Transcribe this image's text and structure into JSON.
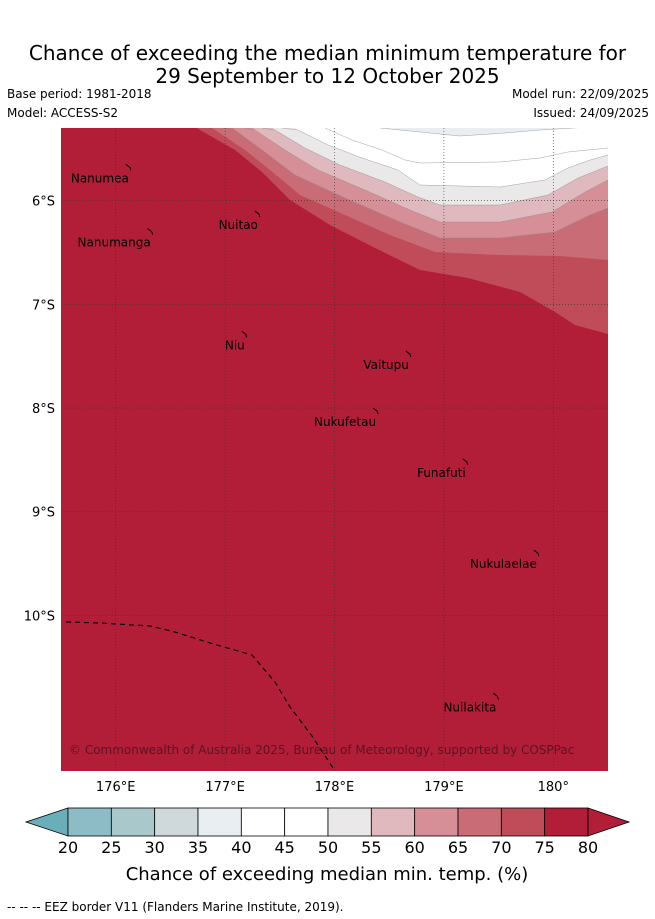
{
  "header": {
    "title_line1": "Chance of exceeding the median minimum temperature for",
    "title_line2": "29 September to 12 October 2025",
    "base_period": "Base period: 1981-2018",
    "model": "Model: ACCESS-S2",
    "model_run": "Model run: 22/09/2025",
    "issued": "Issued: 24/09/2025"
  },
  "map": {
    "lon_range": [
      175.5,
      180.5
    ],
    "lat_range": [
      -11.5,
      -5.3
    ],
    "lon_ticks": [
      {
        "value": 176,
        "label": "176°E"
      },
      {
        "value": 177,
        "label": "177°E"
      },
      {
        "value": 178,
        "label": "178°E"
      },
      {
        "value": 179,
        "label": "179°E"
      },
      {
        "value": 180,
        "label": "180°"
      }
    ],
    "lat_ticks": [
      {
        "value": -6,
        "label": "6°S"
      },
      {
        "value": -7,
        "label": "7°S"
      },
      {
        "value": -8,
        "label": "8°S"
      },
      {
        "value": -9,
        "label": "9°S"
      },
      {
        "value": -10,
        "label": "10°S"
      }
    ],
    "places": [
      {
        "name": "Nanumea",
        "lon": 176.12,
        "lat": -5.67
      },
      {
        "name": "Nuitao",
        "lon": 177.3,
        "lat": -6.12
      },
      {
        "name": "Nanumanga",
        "lon": 176.32,
        "lat": -6.29
      },
      {
        "name": "Niu",
        "lon": 177.18,
        "lat": -7.28
      },
      {
        "name": "Vaitupu",
        "lon": 178.68,
        "lat": -7.47
      },
      {
        "name": "Nukufetau",
        "lon": 178.38,
        "lat": -8.02
      },
      {
        "name": "Funafuti",
        "lon": 179.2,
        "lat": -8.51
      },
      {
        "name": "Nukulaelae",
        "lon": 179.85,
        "lat": -9.39
      },
      {
        "name": "Nuilakita",
        "lon": 179.48,
        "lat": -10.77
      }
    ],
    "copyright": "© Commonwealth of Australia 2025, Bureau of Meteorology, supported by COSPPac"
  },
  "colorbar": {
    "ticks": [
      "20",
      "25",
      "30",
      "35",
      "40",
      "45",
      "50",
      "55",
      "60",
      "65",
      "70",
      "75",
      "80"
    ],
    "colors": [
      "#6aaeba",
      "#8ebcc6",
      "#a9c8cc",
      "#cfd9db",
      "#e8eef2",
      "#ffffff",
      "#ffffff",
      "#ebe8ea",
      "#e0b9bf",
      "#d68e97",
      "#c96c76",
      "#bf4c58",
      "#b21e38"
    ],
    "title": "Chance of exceeding median min. temp. (%)"
  },
  "footnote": "--  --  -- EEZ border V11 (Flanders Marine Institute, 2019)."
}
